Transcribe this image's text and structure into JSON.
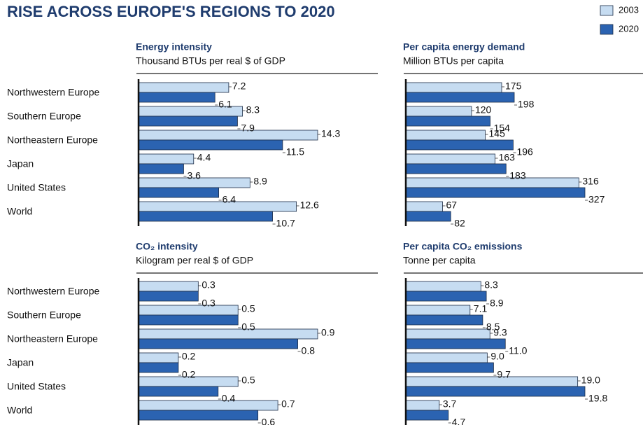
{
  "title": "RISE ACROSS EUROPE'S REGIONS TO 2020",
  "chart_data": [
    {
      "type": "bar",
      "title": "Energy intensity",
      "subtitle": "Thousand BTUs per real $ of GDP",
      "categories": [
        "Northwestern Europe",
        "Southern Europe",
        "Northeastern Europe",
        "Japan",
        "United States",
        "World"
      ],
      "series": [
        {
          "name": "2003",
          "color": "#c6dcf1",
          "values": [
            7.2,
            8.3,
            14.3,
            4.4,
            8.9,
            12.6
          ]
        },
        {
          "name": "2020",
          "color": "#2b63b1",
          "values": [
            6.1,
            7.9,
            11.5,
            3.6,
            6.4,
            10.7
          ]
        }
      ]
    },
    {
      "type": "bar",
      "title": "Per capita energy demand",
      "subtitle": "Million BTUs per capita",
      "series": [
        {
          "color": "#c6dcf1",
          "values": [
            175,
            120,
            145,
            163,
            316,
            67
          ]
        },
        {
          "color": "#2b63b1",
          "values": [
            198,
            154,
            196,
            183,
            327,
            82
          ]
        }
      ]
    },
    {
      "type": "bar",
      "title": "CO₂ intensity",
      "subtitle": "Kilogram per real $ of GDP",
      "categories": [
        "Northwestern Europe",
        "Southern Europe",
        "Northeastern Europe",
        "Japan",
        "United States",
        "World"
      ],
      "series": [
        {
          "color": "#c6dcf1",
          "values": [
            0.3,
            0.5,
            0.9,
            0.2,
            0.5,
            0.7
          ]
        },
        {
          "color": "#2b63b1",
          "values": [
            0.3,
            0.5,
            0.8,
            0.2,
            0.4,
            0.6
          ]
        }
      ]
    },
    {
      "type": "bar",
      "title": "Per capita CO₂ emissions",
      "subtitle": "Tonne per capita",
      "series": [
        {
          "color": "#c6dcf1",
          "values": [
            8.3,
            7.1,
            9.3,
            9.0,
            19.0,
            3.7
          ],
          "value_labels": [
            "8.3",
            "7.1",
            "9.3",
            "9.0",
            "19.0",
            "3.7"
          ]
        },
        {
          "color": "#2b63b1",
          "values": [
            8.9,
            8.5,
            11.0,
            9.7,
            19.8,
            4.7
          ],
          "value_labels": [
            "8.9",
            "8.5",
            "11.0",
            "9.7",
            "19.8",
            "4.7"
          ]
        }
      ]
    }
  ]
}
